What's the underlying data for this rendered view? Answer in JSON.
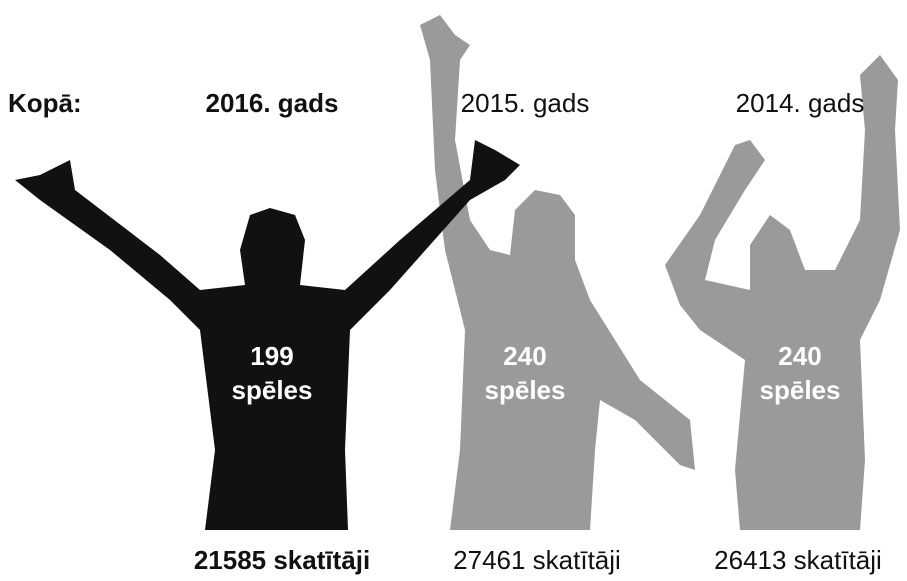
{
  "label": "Kopā:",
  "years": [
    {
      "year": "2016. gads",
      "games": "199",
      "games_label": "spēles",
      "viewers": "21585 skatītāji"
    },
    {
      "year": "2015. gads",
      "games": "240",
      "games_label": "spēles",
      "viewers": "27461 skatītāji"
    },
    {
      "year": "2014. gads",
      "games": "240",
      "games_label": "spēles",
      "viewers": "26413 skatītāji"
    }
  ]
}
